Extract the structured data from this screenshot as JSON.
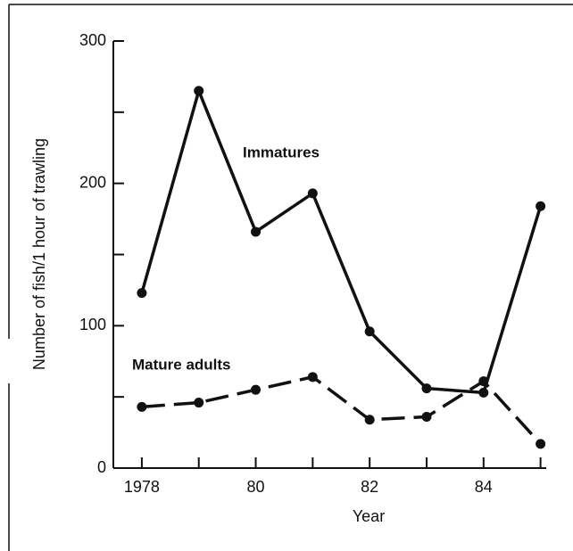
{
  "chart_data": {
    "type": "line",
    "xlabel": "Year",
    "ylabel": "Number of fish/1 hour of trawling",
    "x": [
      1978,
      1979,
      1980,
      1981,
      1982,
      1983,
      1984,
      1985
    ],
    "series": [
      {
        "name": "Immatures",
        "color": "#111111",
        "style": "solid",
        "values": [
          123,
          265,
          166,
          193,
          96,
          56,
          53,
          184
        ]
      },
      {
        "name": "Mature adults",
        "color": "#111111",
        "style": "dashed",
        "values": [
          43,
          46,
          55,
          64,
          34,
          36,
          61,
          17
        ]
      }
    ],
    "xlim": [
      1977.5,
      1985.1
    ],
    "xticks": [
      {
        "value": 1978,
        "label": "1978"
      },
      {
        "value": 1980,
        "label": "80"
      },
      {
        "value": 1982,
        "label": "82"
      },
      {
        "value": 1984,
        "label": "84"
      }
    ],
    "xminorticks": [
      1979,
      1981,
      1983,
      1985
    ],
    "ylim": [
      0,
      300
    ],
    "yticks": [
      0,
      100,
      200,
      300
    ],
    "yminorticks": [
      50,
      150,
      250
    ]
  }
}
